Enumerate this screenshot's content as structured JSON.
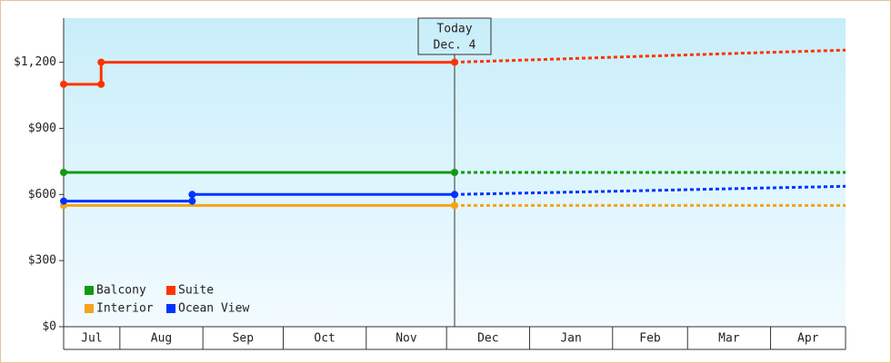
{
  "chart_data": {
    "type": "line",
    "categories": [
      "Jul",
      "Aug",
      "Sep",
      "Oct",
      "Nov",
      "Dec",
      "Jan",
      "Feb",
      "Mar",
      "Apr"
    ],
    "xlim": [
      0,
      292
    ],
    "xticks": [
      0,
      21,
      52,
      82,
      113,
      143,
      174,
      205,
      233,
      264,
      292
    ],
    "ylim": [
      0,
      1400
    ],
    "yticks": [
      {
        "value": 0,
        "label": "$0"
      },
      {
        "value": 300,
        "label": "$300"
      },
      {
        "value": 600,
        "label": "$600"
      },
      {
        "value": 900,
        "label": "$900"
      },
      {
        "value": 1200,
        "label": "$1,200"
      }
    ],
    "legend": "lower left",
    "today": {
      "label": [
        "Today",
        "Dec. 4"
      ],
      "x": 146
    },
    "series": [
      {
        "name": "Balcony",
        "color": "#129a12",
        "x": [
          0,
          146
        ],
        "values": [
          700,
          700
        ],
        "projection": {
          "x": [
            146,
            292
          ],
          "values": [
            700,
            700
          ]
        }
      },
      {
        "name": "Suite",
        "color": "#ff3300",
        "x": [
          0,
          14,
          14,
          146
        ],
        "values": [
          1100,
          1100,
          1200,
          1200
        ],
        "projection": {
          "x": [
            146,
            183,
            219,
            256,
            292
          ],
          "values": [
            1200,
            1214,
            1228,
            1242,
            1255
          ]
        }
      },
      {
        "name": "Interior",
        "color": "#f5a31a",
        "x": [
          0,
          146
        ],
        "values": [
          550,
          550
        ],
        "projection": {
          "x": [
            146,
            292
          ],
          "values": [
            550,
            550
          ]
        }
      },
      {
        "name": "Ocean View",
        "color": "#0033ff",
        "x": [
          0,
          48,
          48,
          146
        ],
        "values": [
          570,
          570,
          600,
          600
        ],
        "projection": {
          "x": [
            146,
            183,
            219,
            256,
            292
          ],
          "values": [
            600,
            609,
            618,
            628,
            637
          ]
        }
      }
    ]
  }
}
